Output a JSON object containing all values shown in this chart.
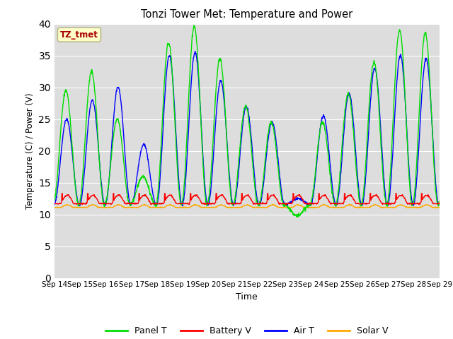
{
  "title": "Tonzi Tower Met: Temperature and Power",
  "xlabel": "Time",
  "ylabel": "Temperature (C) / Power (V)",
  "annotation": "TZ_tmet",
  "annotation_color": "#aa0000",
  "annotation_bg": "#ffffcc",
  "annotation_edge": "#bbbb88",
  "ylim": [
    0,
    40
  ],
  "yticks": [
    0,
    5,
    10,
    15,
    20,
    25,
    30,
    35,
    40
  ],
  "xtick_labels": [
    "Sep 14",
    "Sep 15",
    "Sep 16",
    "Sep 17",
    "Sep 18",
    "Sep 19",
    "Sep 20",
    "Sep 21",
    "Sep 22",
    "Sep 23",
    "Sep 24",
    "Sep 25",
    "Sep 26",
    "Sep 27",
    "Sep 28",
    "Sep 29"
  ],
  "plot_bg": "#dddddd",
  "fig_bg": "#ffffff",
  "grid_color": "#ffffff",
  "colors": {
    "Panel T": "#00dd00",
    "Battery V": "#ff0000",
    "Air T": "#0000ff",
    "Solar V": "#ffaa00"
  },
  "n_days": 15,
  "panel_day_peaks": [
    29.5,
    32.5,
    25.0,
    16.0,
    37.0,
    39.5,
    34.5,
    27.0,
    24.5,
    9.8,
    24.5,
    29.0,
    34.0,
    39.0,
    38.5
  ],
  "air_day_peaks": [
    25.0,
    28.0,
    30.0,
    21.0,
    35.0,
    35.5,
    31.0,
    27.0,
    24.5,
    12.5,
    25.5,
    29.0,
    33.0,
    35.0,
    34.5
  ],
  "panel_peak_phase": 0.45,
  "air_peak_phase": 0.48,
  "trough_value": 11.5,
  "battery_base": 11.7,
  "battery_spike": 13.0,
  "solar_base": 11.1,
  "solar_spike": 11.5,
  "lw": 1.0
}
